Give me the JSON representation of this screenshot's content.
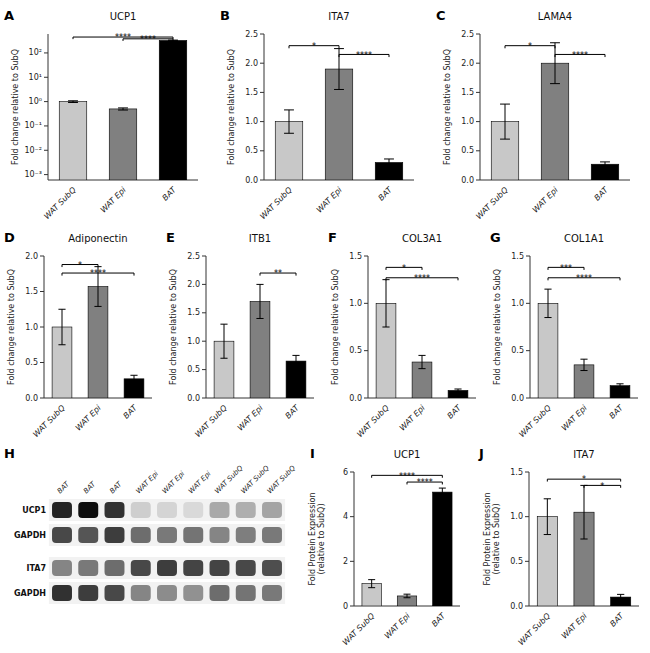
{
  "chart_data": [
    {
      "type": "bar",
      "panel_label": "A",
      "title": "UCP1",
      "ylabel": "Fold change relative to SubQ",
      "categories": [
        "WAT SubQ",
        "WAT Epi",
        "BAT"
      ],
      "values": [
        1.0,
        0.5,
        325.0
      ],
      "errors": [
        0.08,
        0.05,
        12.0
      ],
      "colors": [
        "#c8c8c8",
        "#808080",
        "#000000"
      ],
      "log": "y",
      "ylim": [
        0.0006,
        600
      ],
      "yticks": [
        {
          "value": 0.001,
          "label": "10⁻³"
        },
        {
          "value": 0.01,
          "label": "10⁻²"
        },
        {
          "value": 0.1,
          "label": "10⁻¹"
        },
        {
          "value": 1,
          "label": "10⁰"
        },
        {
          "value": 10,
          "label": "10¹"
        },
        {
          "value": 100,
          "label": "10²"
        }
      ],
      "annotations": [
        {
          "from": "WAT SubQ",
          "to": "BAT",
          "y": 450,
          "text": "****"
        },
        {
          "from": "WAT Epi",
          "to": "BAT",
          "y": 380,
          "text": "****"
        }
      ]
    },
    {
      "type": "bar",
      "panel_label": "B",
      "title": "ITA7",
      "ylabel": "Fold change relative to SubQ",
      "categories": [
        "WAT SubQ",
        "WAT Epi",
        "BAT"
      ],
      "values": [
        1.0,
        1.9,
        0.3
      ],
      "errors": [
        0.2,
        0.35,
        0.06
      ],
      "colors": [
        "#c8c8c8",
        "#808080",
        "#000000"
      ],
      "ylim": [
        0,
        2.5
      ],
      "yticks": [
        {
          "value": 0,
          "label": "0.0"
        },
        0.5,
        {
          "value": 1,
          "label": "1.0"
        },
        1.5,
        {
          "value": 2,
          "label": "2.0"
        },
        2.5
      ],
      "annotations": [
        {
          "from": "WAT SubQ",
          "to": "WAT Epi",
          "y": 2.3,
          "text": "*"
        },
        {
          "from": "WAT Epi",
          "to": "BAT",
          "y": 2.15,
          "text": "****"
        }
      ]
    },
    {
      "type": "bar",
      "panel_label": "C",
      "title": "LAMA4",
      "ylabel": "Fold change relative to SubQ",
      "categories": [
        "WAT SubQ",
        "WAT Epi",
        "BAT"
      ],
      "values": [
        1.0,
        2.0,
        0.27
      ],
      "errors": [
        0.3,
        0.35,
        0.04
      ],
      "colors": [
        "#c8c8c8",
        "#808080",
        "#000000"
      ],
      "ylim": [
        0,
        2.5
      ],
      "yticks": [
        {
          "value": 0,
          "label": "0.0"
        },
        0.5,
        {
          "value": 1,
          "label": "1.0"
        },
        1.5,
        {
          "value": 2,
          "label": "2.0"
        },
        2.5
      ],
      "annotations": [
        {
          "from": "WAT SubQ",
          "to": "WAT Epi",
          "y": 2.3,
          "text": "*"
        },
        {
          "from": "WAT Epi",
          "to": "BAT",
          "y": 2.15,
          "text": "****"
        }
      ]
    },
    {
      "type": "bar",
      "panel_label": "D",
      "title": "Adiponectin",
      "ylabel": "Fold change relative to SubQ",
      "categories": [
        "WAT SubQ",
        "WAT Epi",
        "BAT"
      ],
      "values": [
        1.0,
        1.57,
        0.27
      ],
      "errors": [
        0.25,
        0.28,
        0.05
      ],
      "colors": [
        "#c8c8c8",
        "#808080",
        "#000000"
      ],
      "ylim": [
        0,
        2.0
      ],
      "yticks": [
        {
          "value": 0,
          "label": "0.0"
        },
        0.5,
        {
          "value": 1,
          "label": "1.0"
        },
        1.5,
        {
          "value": 2,
          "label": "2.0"
        }
      ],
      "annotations": [
        {
          "from": "WAT SubQ",
          "to": "WAT Epi",
          "y": 1.88,
          "text": "*"
        },
        {
          "from": "WAT SubQ",
          "to": "BAT",
          "y": 1.76,
          "text": "****"
        }
      ]
    },
    {
      "type": "bar",
      "panel_label": "E",
      "title": "ITB1",
      "ylabel": "Fold change relative to SubQ",
      "categories": [
        "WAT SubQ",
        "WAT Epi",
        "BAT"
      ],
      "values": [
        1.0,
        1.7,
        0.65
      ],
      "errors": [
        0.3,
        0.3,
        0.1
      ],
      "colors": [
        "#c8c8c8",
        "#808080",
        "#000000"
      ],
      "ylim": [
        0,
        2.5
      ],
      "yticks": [
        {
          "value": 0,
          "label": "0.0"
        },
        0.5,
        {
          "value": 1,
          "label": "1.0"
        },
        1.5,
        {
          "value": 2,
          "label": "2.0"
        },
        2.5
      ],
      "annotations": [
        {
          "from": "WAT Epi",
          "to": "BAT",
          "y": 2.2,
          "text": "**"
        }
      ]
    },
    {
      "type": "bar",
      "panel_label": "F",
      "title": "COL3A1",
      "ylabel": "Fold change relative to SubQ",
      "categories": [
        "WAT SubQ",
        "WAT Epi",
        "BAT"
      ],
      "values": [
        1.0,
        0.38,
        0.08
      ],
      "errors": [
        0.25,
        0.07,
        0.015
      ],
      "colors": [
        "#c8c8c8",
        "#808080",
        "#000000"
      ],
      "ylim": [
        0,
        1.5
      ],
      "yticks": [
        {
          "value": 0,
          "label": "0.0"
        },
        0.5,
        {
          "value": 1,
          "label": "1.0"
        },
        1.5
      ],
      "annotations": [
        {
          "from": "WAT SubQ",
          "to": "WAT Epi",
          "y": 1.38,
          "text": "*"
        },
        {
          "from": "WAT SubQ",
          "to": "BAT",
          "y": 1.27,
          "text": "****"
        }
      ]
    },
    {
      "type": "bar",
      "panel_label": "G",
      "title": "COL1A1",
      "ylabel": "Fold change relative to SubQ",
      "categories": [
        "WAT SubQ",
        "WAT Epi",
        "BAT"
      ],
      "values": [
        1.0,
        0.35,
        0.13
      ],
      "errors": [
        0.15,
        0.06,
        0.02
      ],
      "colors": [
        "#c8c8c8",
        "#808080",
        "#000000"
      ],
      "ylim": [
        0,
        1.5
      ],
      "yticks": [
        {
          "value": 0,
          "label": "0.0"
        },
        0.5,
        {
          "value": 1,
          "label": "1.0"
        },
        1.5
      ],
      "annotations": [
        {
          "from": "WAT SubQ",
          "to": "WAT Epi",
          "y": 1.38,
          "text": "***"
        },
        {
          "from": "WAT SubQ",
          "to": "BAT",
          "y": 1.27,
          "text": "****"
        }
      ]
    },
    {
      "type": "heatmap",
      "panel_label": "H",
      "x": [
        "BAT",
        "BAT",
        "BAT",
        "WAT Epi",
        "WAT Epi",
        "WAT Epi",
        "WAT SubQ",
        "WAT SubQ",
        "WAT SubQ"
      ],
      "y": [
        "UCP1",
        "GAPDH",
        "ITA7",
        "GAPDH"
      ],
      "values": [
        [
          0.85,
          0.95,
          0.8,
          0.15,
          0.12,
          0.1,
          0.3,
          0.28,
          0.32
        ],
        [
          0.7,
          0.65,
          0.75,
          0.55,
          0.5,
          0.52,
          0.45,
          0.48,
          0.5
        ],
        [
          0.45,
          0.5,
          0.55,
          0.7,
          0.75,
          0.72,
          0.72,
          0.7,
          0.68
        ],
        [
          0.8,
          0.75,
          0.7,
          0.45,
          0.42,
          0.4,
          0.55,
          0.52,
          0.5
        ]
      ]
    },
    {
      "type": "bar",
      "panel_label": "I",
      "title": "UCP1",
      "ylabel": "Fold Protein Expression\n(relative to SubQ)",
      "categories": [
        "WAT SubQ",
        "WAT Epi",
        "BAT"
      ],
      "values": [
        1.0,
        0.45,
        5.1
      ],
      "errors": [
        0.18,
        0.08,
        0.18
      ],
      "colors": [
        "#c8c8c8",
        "#808080",
        "#000000"
      ],
      "ylim": [
        0,
        6
      ],
      "yticks": [
        0,
        2,
        4,
        6
      ],
      "annotations": [
        {
          "from": "WAT SubQ",
          "to": "BAT",
          "y": 5.85,
          "text": "****"
        },
        {
          "from": "WAT Epi",
          "to": "BAT",
          "y": 5.55,
          "text": "****"
        }
      ]
    },
    {
      "type": "bar",
      "panel_label": "J",
      "title": "ITA7",
      "ylabel": "Fold Protein Expression\n(relative to SubQ)",
      "categories": [
        "WAT SubQ",
        "WAT Epi",
        "BAT"
      ],
      "values": [
        1.0,
        1.05,
        0.1
      ],
      "errors": [
        0.2,
        0.3,
        0.03
      ],
      "colors": [
        "#c8c8c8",
        "#808080",
        "#000000"
      ],
      "ylim": [
        0,
        1.5
      ],
      "yticks": [
        {
          "value": 0,
          "label": "0.0"
        },
        0.5,
        {
          "value": 1,
          "label": "1.0"
        },
        1.5
      ],
      "annotations": [
        {
          "from": "WAT SubQ",
          "to": "BAT",
          "y": 1.42,
          "text": "*"
        },
        {
          "from": "WAT Epi",
          "to": "BAT",
          "y": 1.35,
          "text": "*"
        }
      ]
    }
  ]
}
